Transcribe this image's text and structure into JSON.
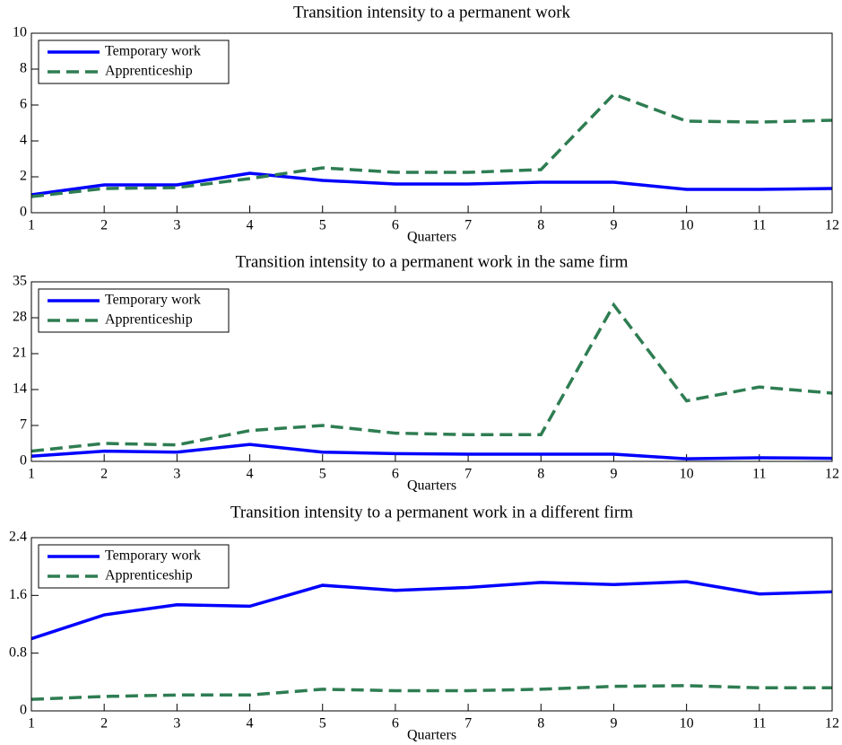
{
  "chart_data": [
    {
      "type": "line",
      "title": "Transition intensity to a permanent work",
      "xlabel": "Quarters",
      "x": [
        1,
        2,
        3,
        4,
        5,
        6,
        7,
        8,
        9,
        10,
        11,
        12
      ],
      "xlim": [
        1,
        12
      ],
      "xticks": [
        1,
        2,
        3,
        4,
        5,
        6,
        7,
        8,
        9,
        10,
        11,
        12
      ],
      "ylim": [
        0,
        10
      ],
      "yticks": [
        0,
        2,
        4,
        6,
        8,
        10
      ],
      "legend": "upper left",
      "series": [
        {
          "name": "Temporary work",
          "color": "#0000ff",
          "linestyle": "solid",
          "values": [
            1.0,
            1.55,
            1.55,
            2.2,
            1.8,
            1.6,
            1.6,
            1.7,
            1.7,
            1.3,
            1.3,
            1.35
          ]
        },
        {
          "name": "Apprenticeship",
          "color": "#2e7d52",
          "linestyle": "dashed",
          "values": [
            0.9,
            1.35,
            1.4,
            1.9,
            2.5,
            2.25,
            2.25,
            2.4,
            6.6,
            5.1,
            5.05,
            5.15
          ]
        }
      ]
    },
    {
      "type": "line",
      "title": "Transition intensity to a permanent work in the same firm",
      "xlabel": "Quarters",
      "x": [
        1,
        2,
        3,
        4,
        5,
        6,
        7,
        8,
        9,
        10,
        11,
        12
      ],
      "xlim": [
        1,
        12
      ],
      "xticks": [
        1,
        2,
        3,
        4,
        5,
        6,
        7,
        8,
        9,
        10,
        11,
        12
      ],
      "ylim": [
        0,
        35
      ],
      "yticks": [
        0,
        7,
        14,
        21,
        28,
        35
      ],
      "legend": "upper left",
      "series": [
        {
          "name": "Temporary work",
          "color": "#0000ff",
          "linestyle": "solid",
          "values": [
            1.0,
            2.0,
            1.8,
            3.3,
            1.8,
            1.5,
            1.4,
            1.4,
            1.4,
            0.5,
            0.7,
            0.6
          ]
        },
        {
          "name": "Apprenticeship",
          "color": "#2e7d52",
          "linestyle": "dashed",
          "values": [
            2.0,
            3.5,
            3.2,
            6.0,
            7.0,
            5.5,
            5.2,
            5.2,
            30.5,
            11.8,
            14.5,
            13.3
          ]
        }
      ]
    },
    {
      "type": "line",
      "title": "Transition intensity to a permanent work in a different firm",
      "xlabel": "Quarters",
      "x": [
        1,
        2,
        3,
        4,
        5,
        6,
        7,
        8,
        9,
        10,
        11,
        12
      ],
      "xlim": [
        1,
        12
      ],
      "xticks": [
        1,
        2,
        3,
        4,
        5,
        6,
        7,
        8,
        9,
        10,
        11,
        12
      ],
      "ylim": [
        0,
        2.4
      ],
      "yticks": [
        0,
        0.8,
        1.6,
        2.4
      ],
      "legend": "upper left",
      "series": [
        {
          "name": "Temporary work",
          "color": "#0000ff",
          "linestyle": "solid",
          "values": [
            1.0,
            1.33,
            1.47,
            1.45,
            1.74,
            1.67,
            1.71,
            1.78,
            1.75,
            1.79,
            1.62,
            1.65
          ]
        },
        {
          "name": "Apprenticeship",
          "color": "#2e7d52",
          "linestyle": "dashed",
          "values": [
            0.16,
            0.2,
            0.22,
            0.22,
            0.3,
            0.28,
            0.28,
            0.3,
            0.34,
            0.35,
            0.32,
            0.32
          ]
        }
      ]
    }
  ]
}
